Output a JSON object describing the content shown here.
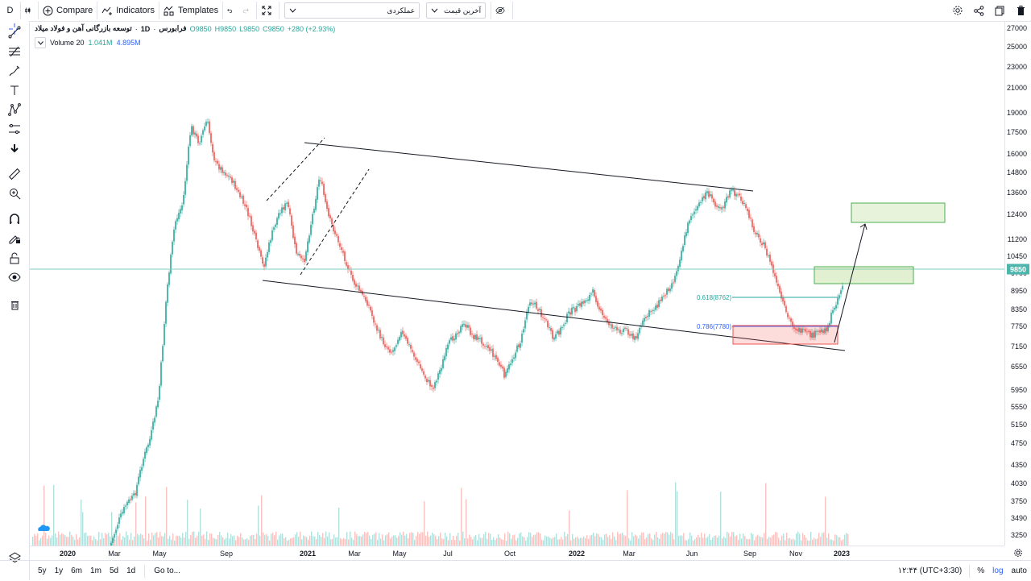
{
  "toolbar": {
    "interval": "D",
    "compare": "Compare",
    "indicators": "Indicators",
    "templates": "Templates",
    "layout_select": "عملکردی",
    "price_select": "آخرین قیمت"
  },
  "legend": {
    "symbol": "توسعه بازرگانی آهن و فولاد میلاد",
    "interval": "1D",
    "exchange": "فرابورس",
    "open": "O9850",
    "high": "H9850",
    "low": "L9850",
    "close": "C9850",
    "change": "+280 (+2.93%)",
    "volume_label": "Volume 20",
    "volume_value": "1.041M",
    "volume_ma": "4.895M"
  },
  "price_axis": {
    "ticks": [
      "27000",
      "25000",
      "23000",
      "21000",
      "19000",
      "17500",
      "16000",
      "14800",
      "13600",
      "12400",
      "11200",
      "10450",
      "9700",
      "8950",
      "8350",
      "7750",
      "7150",
      "6550",
      "5950",
      "5550",
      "5150",
      "4750",
      "4350",
      "4030",
      "3750",
      "3490",
      "3250"
    ],
    "last_price": "9850"
  },
  "time_axis": {
    "ticks": [
      "2020",
      "Mar",
      "May",
      "Sep",
      "2021",
      "Mar",
      "May",
      "Jul",
      "Oct",
      "2022",
      "Mar",
      "Jun",
      "Sep",
      "Nov",
      "2023"
    ]
  },
  "annotations": {
    "fib1": "0.618(8762)",
    "fib2": "0.786(7780)"
  },
  "bottombar": {
    "ranges": [
      "5y",
      "1y",
      "6m",
      "1m",
      "5d",
      "1d"
    ],
    "goto": "Go to...",
    "time": "۱۲:۴۴ (UTC+3:30)",
    "percent": "%",
    "log": "log",
    "auto": "auto"
  },
  "colors": {
    "up": "#26a69a",
    "down": "#ef5350",
    "accent": "#2962ff",
    "last_price": "#4db6ac"
  }
}
